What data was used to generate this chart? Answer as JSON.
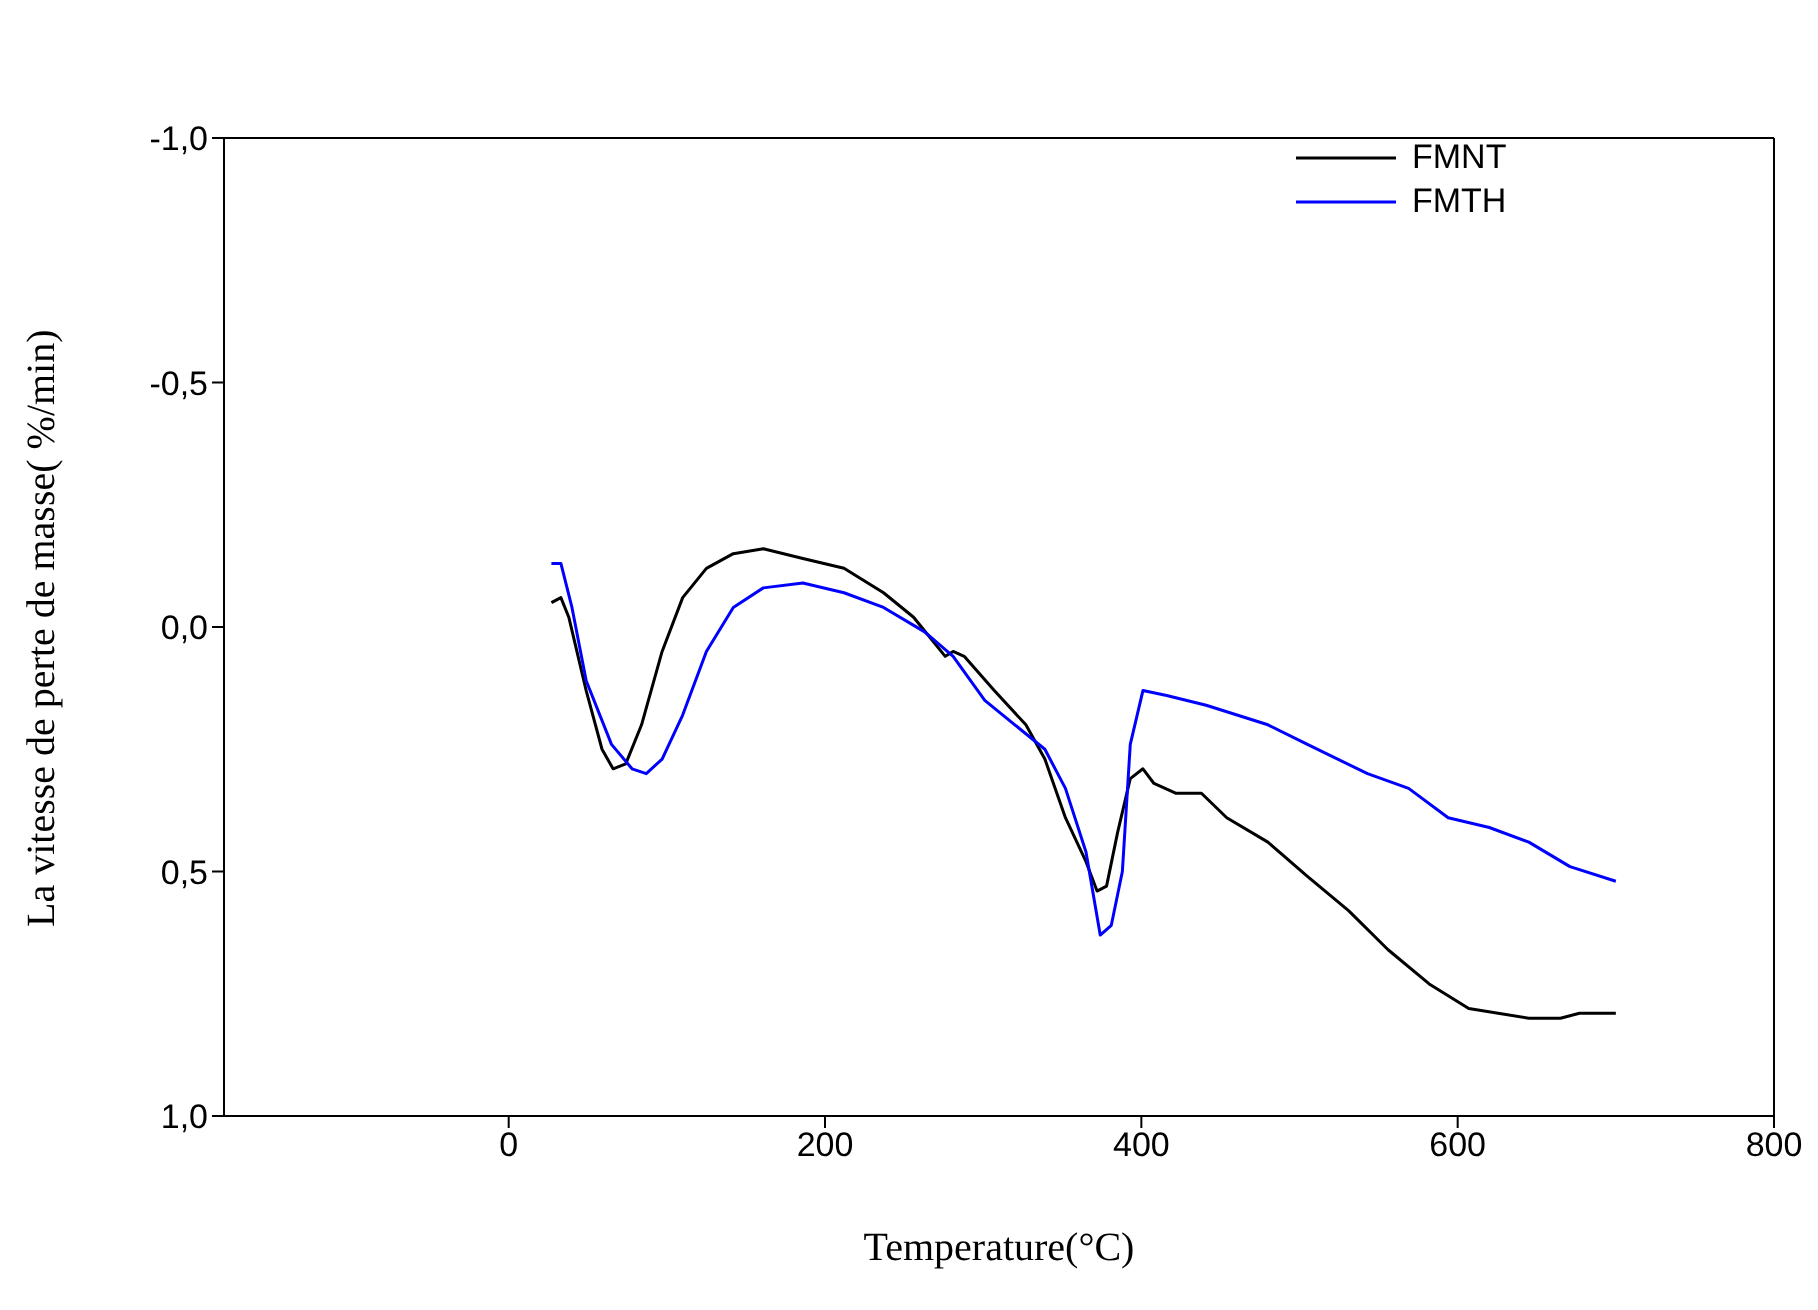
{
  "chart_data": {
    "type": "line",
    "xlabel": "Temperature(°C)",
    "ylabel": "La vitesse de perte de masse( %/min)",
    "xlim": [
      -180,
      800
    ],
    "xticks": [
      0,
      200,
      400,
      600,
      800
    ],
    "ylim": [
      1,
      -1
    ],
    "yticks": [
      {
        "value": -1,
        "label": "-1,0"
      },
      {
        "value": -0.5,
        "label": "-0,5"
      },
      {
        "value": 0,
        "label": "0,0"
      },
      {
        "value": 0.5,
        "label": "0,5"
      },
      {
        "value": 1,
        "label": "1,0"
      }
    ],
    "legend": "top right",
    "marker": "none",
    "line_style": "solid",
    "series": [
      {
        "name": "FMNT",
        "color": "#000000",
        "x": [
          27,
          33,
          38,
          49,
          59,
          66,
          74,
          84,
          97,
          110,
          125,
          142,
          161,
          186,
          212,
          237,
          256,
          276,
          281,
          288,
          307,
          327,
          339,
          352,
          365,
          372,
          378,
          385,
          393,
          401,
          408,
          422,
          438,
          454,
          480,
          505,
          531,
          556,
          582,
          607,
          645,
          665,
          677,
          700
        ],
        "values": [
          -0.05,
          -0.06,
          -0.02,
          0.13,
          0.25,
          0.29,
          0.28,
          0.2,
          0.05,
          -0.06,
          -0.12,
          -0.15,
          -0.16,
          -0.14,
          -0.12,
          -0.07,
          -0.02,
          0.06,
          0.05,
          0.06,
          0.13,
          0.2,
          0.27,
          0.39,
          0.48,
          0.54,
          0.53,
          0.42,
          0.31,
          0.29,
          0.32,
          0.34,
          0.34,
          0.39,
          0.44,
          0.51,
          0.58,
          0.66,
          0.73,
          0.78,
          0.8,
          0.8,
          0.79,
          0.79
        ]
      },
      {
        "name": "FMTH",
        "color": "#0000ff",
        "x": [
          27,
          33,
          40,
          49,
          65,
          78,
          87,
          97,
          110,
          125,
          142,
          161,
          186,
          212,
          237,
          263,
          281,
          301,
          320,
          339,
          352,
          365,
          374,
          381,
          388,
          393,
          401,
          416,
          441,
          480,
          505,
          543,
          569,
          594,
          620,
          645,
          671,
          700
        ],
        "values": [
          -0.13,
          -0.13,
          -0.04,
          0.11,
          0.24,
          0.29,
          0.3,
          0.27,
          0.18,
          0.05,
          -0.04,
          -0.08,
          -0.09,
          -0.07,
          -0.04,
          0.01,
          0.06,
          0.15,
          0.2,
          0.25,
          0.33,
          0.46,
          0.63,
          0.61,
          0.5,
          0.24,
          0.13,
          0.14,
          0.16,
          0.2,
          0.24,
          0.3,
          0.33,
          0.39,
          0.41,
          0.44,
          0.49,
          0.52
        ]
      }
    ]
  }
}
